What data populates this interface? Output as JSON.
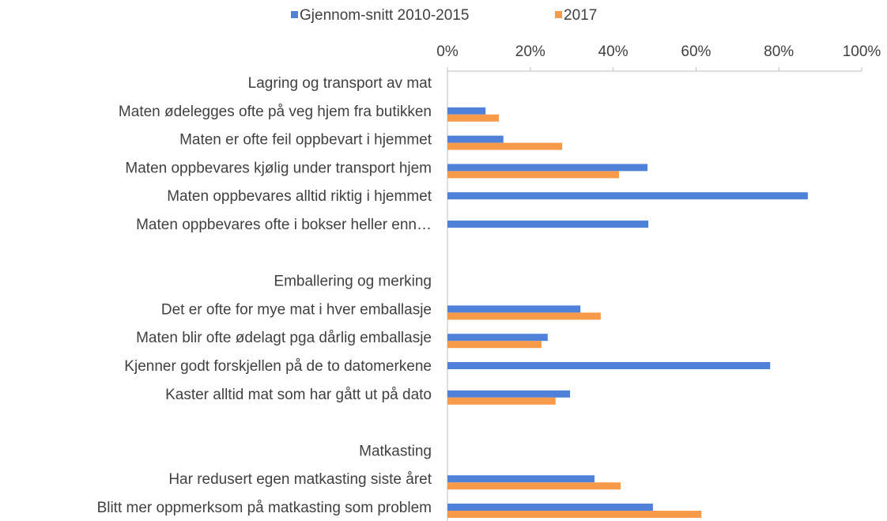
{
  "chart_data": {
    "type": "bar",
    "orientation": "horizontal",
    "categories": [
      "Lagring og transport av mat",
      "Maten ødelegges ofte på veg hjem fra butikken",
      "Maten er ofte feil oppbevart i hjemmet",
      "Maten oppbevares kjølig under transport hjem",
      "Maten oppbevares alltid riktig i hjemmet",
      "Maten oppbevares ofte i bokser heller enn…",
      null,
      "Emballering og merking",
      "Det er ofte for mye mat i hver emballasje",
      "Maten blir ofte ødelagt pga dårlig emballasje",
      "Kjenner godt forskjellen på de to datomerkene",
      "Kaster alltid mat som har gått ut på dato",
      null,
      "Matkasting",
      "Har redusert egen matkasting siste året",
      "Blitt mer oppmerksom på matkasting som problem"
    ],
    "series": [
      {
        "name": "Gjennom-snitt 2010-2015",
        "color": "#4f81d9",
        "values": [
          null,
          9.2,
          13.5,
          48.3,
          87.0,
          48.5,
          null,
          null,
          32.1,
          24.2,
          77.9,
          29.6,
          null,
          null,
          35.5,
          49.6
        ]
      },
      {
        "name": "2017",
        "color": "#f79a4a",
        "values": [
          null,
          12.4,
          27.7,
          41.4,
          null,
          null,
          null,
          null,
          37.0,
          22.7,
          null,
          26.1,
          null,
          null,
          41.8,
          61.3
        ]
      }
    ],
    "xlim": [
      0,
      100
    ],
    "xticks": [
      {
        "value": 0,
        "label": "0%"
      },
      {
        "value": 20,
        "label": "20%"
      },
      {
        "value": 40,
        "label": "40%"
      },
      {
        "value": 60,
        "label": "60%"
      },
      {
        "value": 80,
        "label": "80%"
      },
      {
        "value": 100,
        "label": "100%"
      }
    ],
    "legend": "top"
  }
}
